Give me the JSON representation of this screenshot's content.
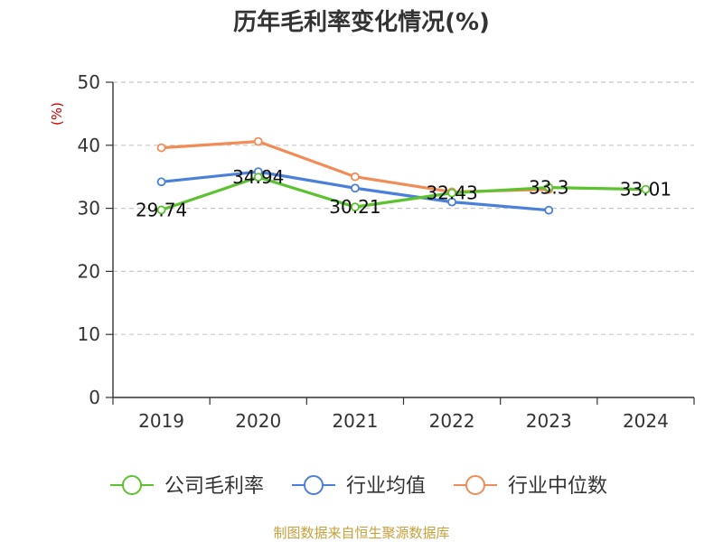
{
  "chart_data": {
    "type": "line",
    "title": "历年毛利率变化情况(%)",
    "y_unit_label": "(%)",
    "categories": [
      "2019",
      "2020",
      "2021",
      "2022",
      "2023",
      "2024"
    ],
    "ylim": [
      0,
      50
    ],
    "yticks": [
      0,
      10,
      20,
      30,
      40,
      50
    ],
    "grid": true,
    "legend_position": "bottom",
    "series": [
      {
        "name": "公司毛利率",
        "color": "#5cc22f",
        "values": [
          29.74,
          34.94,
          30.21,
          32.43,
          33.3,
          33.01
        ],
        "labels": [
          "29.74",
          "34.94",
          "30.21",
          "32.43",
          "33.3",
          "33.01"
        ]
      },
      {
        "name": "行业均值",
        "color": "#4b7fdc",
        "values": [
          34.2,
          35.8,
          33.2,
          31.0,
          29.7,
          null
        ]
      },
      {
        "name": "行业中位数",
        "color": "#f28c57",
        "values": [
          39.6,
          40.6,
          35.0,
          32.6,
          33.0,
          null
        ]
      }
    ],
    "source": "制图数据来自恒生聚源数据库"
  }
}
